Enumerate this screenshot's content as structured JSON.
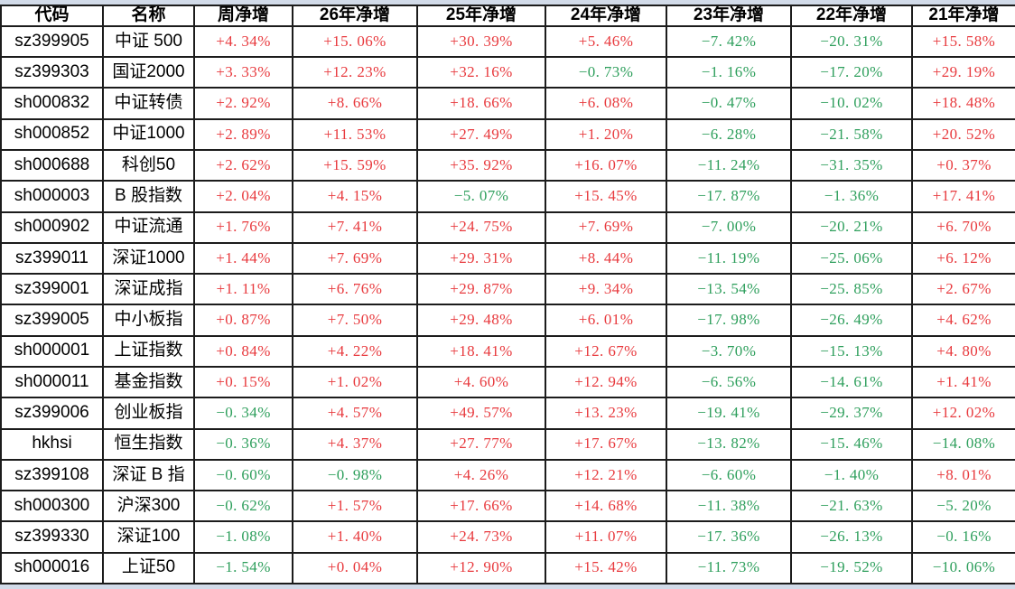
{
  "colors": {
    "positive_red": "#e83a3e",
    "negative_green": "#2e9f5c",
    "grid_border": "#1c1c1c",
    "outside_strip": "#d2dbe9",
    "cell_background": "#ffffff",
    "text_black": "#000000"
  },
  "table": {
    "columns": [
      "代码",
      "名称",
      "周净增",
      "26年净增",
      "25年净增",
      "24年净增",
      "23年净增",
      "22年净增",
      "21年净增"
    ],
    "rows": [
      {
        "code": "sz399905",
        "name": "中证 500",
        "values": [
          "+4.34%",
          "+15.06%",
          "+30.39%",
          "+5.46%",
          "-7.42%",
          "-20.31%",
          "+15.58%"
        ]
      },
      {
        "code": "sz399303",
        "name": "国证2000",
        "values": [
          "+3.33%",
          "+12.23%",
          "+32.16%",
          "-0.73%",
          "-1.16%",
          "-17.20%",
          "+29.19%"
        ]
      },
      {
        "code": "sh000832",
        "name": "中证转债",
        "values": [
          "+2.92%",
          "+8.66%",
          "+18.66%",
          "+6.08%",
          "-0.47%",
          "-10.02%",
          "+18.48%"
        ]
      },
      {
        "code": "sh000852",
        "name": "中证1000",
        "values": [
          "+2.89%",
          "+11.53%",
          "+27.49%",
          "+1.20%",
          "-6.28%",
          "-21.58%",
          "+20.52%"
        ]
      },
      {
        "code": "sh000688",
        "name": "科创50",
        "values": [
          "+2.62%",
          "+15.59%",
          "+35.92%",
          "+16.07%",
          "-11.24%",
          "-31.35%",
          "+0.37%"
        ]
      },
      {
        "code": "sh000003",
        "name": "B 股指数",
        "values": [
          "+2.04%",
          "+4.15%",
          "-5.07%",
          "+15.45%",
          "-17.87%",
          "-1.36%",
          "+17.41%"
        ]
      },
      {
        "code": "sh000902",
        "name": "中证流通",
        "values": [
          "+1.76%",
          "+7.41%",
          "+24.75%",
          "+7.69%",
          "-7.00%",
          "-20.21%",
          "+6.70%"
        ]
      },
      {
        "code": "sz399011",
        "name": "深证1000",
        "values": [
          "+1.44%",
          "+7.69%",
          "+29.31%",
          "+8.44%",
          "-11.19%",
          "-25.06%",
          "+6.12%"
        ]
      },
      {
        "code": "sz399001",
        "name": "深证成指",
        "values": [
          "+1.11%",
          "+6.76%",
          "+29.87%",
          "+9.34%",
          "-13.54%",
          "-25.85%",
          "+2.67%"
        ]
      },
      {
        "code": "sz399005",
        "name": "中小板指",
        "values": [
          "+0.87%",
          "+7.50%",
          "+29.48%",
          "+6.01%",
          "-17.98%",
          "-26.49%",
          "+4.62%"
        ]
      },
      {
        "code": "sh000001",
        "name": "上证指数",
        "values": [
          "+0.84%",
          "+4.22%",
          "+18.41%",
          "+12.67%",
          "-3.70%",
          "-15.13%",
          "+4.80%"
        ]
      },
      {
        "code": "sh000011",
        "name": "基金指数",
        "values": [
          "+0.15%",
          "+1.02%",
          "+4.60%",
          "+12.94%",
          "-6.56%",
          "-14.61%",
          "+1.41%"
        ]
      },
      {
        "code": "sz399006",
        "name": "创业板指",
        "values": [
          "-0.34%",
          "+4.57%",
          "+49.57%",
          "+13.23%",
          "-19.41%",
          "-29.37%",
          "+12.02%"
        ]
      },
      {
        "code": "hkhsi",
        "name": "恒生指数",
        "values": [
          "-0.36%",
          "+4.37%",
          "+27.77%",
          "+17.67%",
          "-13.82%",
          "-15.46%",
          "-14.08%"
        ]
      },
      {
        "code": "sz399108",
        "name": "深证 B 指",
        "values": [
          "-0.60%",
          "-0.98%",
          "+4.26%",
          "+12.21%",
          "-6.60%",
          "-1.40%",
          "+8.01%"
        ]
      },
      {
        "code": "sh000300",
        "name": "沪深300",
        "values": [
          "-0.62%",
          "+1.57%",
          "+17.66%",
          "+14.68%",
          "-11.38%",
          "-21.63%",
          "-5.20%"
        ]
      },
      {
        "code": "sz399330",
        "name": "深证100",
        "values": [
          "-1.08%",
          "+1.40%",
          "+24.73%",
          "+11.07%",
          "-17.36%",
          "-26.13%",
          "-0.16%"
        ]
      },
      {
        "code": "sh000016",
        "name": "上证50",
        "values": [
          "-1.54%",
          "+0.04%",
          "+12.90%",
          "+15.42%",
          "-11.73%",
          "-19.52%",
          "-10.06%"
        ]
      }
    ]
  }
}
